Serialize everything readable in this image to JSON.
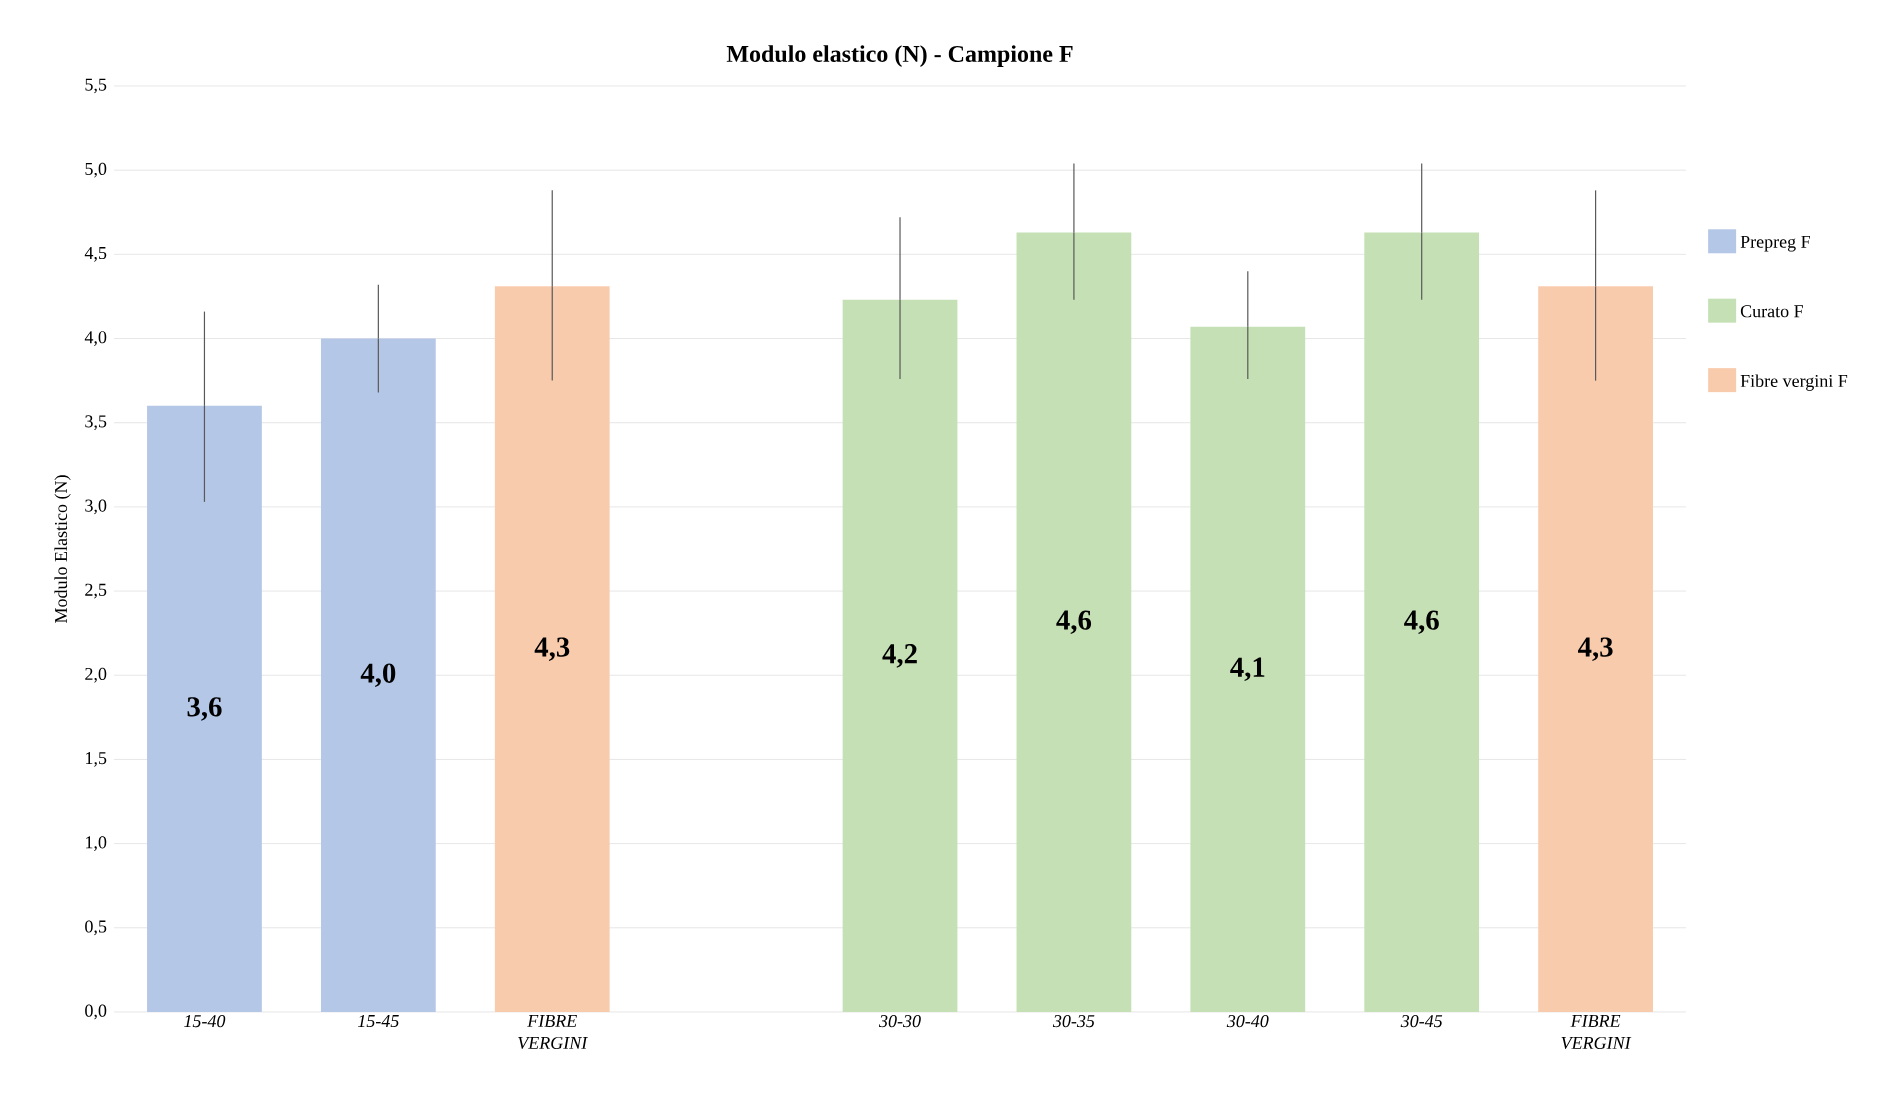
{
  "chart_data": {
    "type": "bar",
    "title": "Modulo elastico (N) - Campione F",
    "ylabel": "Modulo Elastico (N)",
    "categories": [
      "15-40",
      "15-45",
      "FIBRE VERGINI",
      null,
      "30-30",
      "30-35",
      "30-40",
      "30-45",
      "FIBRE VERGINI"
    ],
    "series": [
      {
        "name": "Prepreg F",
        "color": "#b4c7e7",
        "values": [
          3.6,
          4.0,
          null,
          null,
          null,
          null,
          null,
          null,
          null
        ],
        "errors": [
          [
            3.03,
            4.16
          ],
          [
            3.68,
            4.32
          ],
          null,
          null,
          null,
          null,
          null,
          null,
          null
        ],
        "value_labels": [
          "3,6",
          "4,0",
          null,
          null,
          null,
          null,
          null,
          null,
          null
        ]
      },
      {
        "name": "Curato F",
        "color": "#c5e0b4",
        "values": [
          null,
          null,
          null,
          null,
          4.23,
          4.63,
          4.07,
          4.63,
          null
        ],
        "errors": [
          null,
          null,
          null,
          null,
          [
            3.76,
            4.72
          ],
          [
            4.23,
            5.04
          ],
          [
            3.76,
            4.4
          ],
          [
            4.23,
            5.04
          ],
          null
        ],
        "value_labels": [
          null,
          null,
          null,
          null,
          "4,2",
          "4,6",
          "4,1",
          "4,6",
          null
        ]
      },
      {
        "name": "Fibre vergini F",
        "color": "#f8cbad",
        "values": [
          null,
          null,
          4.31,
          null,
          null,
          null,
          null,
          null,
          4.31
        ],
        "errors": [
          null,
          null,
          [
            3.75,
            4.88
          ],
          null,
          null,
          null,
          null,
          null,
          [
            3.75,
            4.88
          ]
        ],
        "value_labels": [
          null,
          null,
          "4,3",
          null,
          null,
          null,
          null,
          null,
          "4,3"
        ]
      }
    ],
    "ylim": [
      0,
      5.5
    ],
    "yticks": [
      {
        "value": 0,
        "label": "0,0"
      },
      {
        "value": 0.5,
        "label": "0,5"
      },
      {
        "value": 1,
        "label": "1,0"
      },
      {
        "value": 1.5,
        "label": "1,5"
      },
      {
        "value": 2,
        "label": "2,0"
      },
      {
        "value": 2.5,
        "label": "2,5"
      },
      {
        "value": 3,
        "label": "3,0"
      },
      {
        "value": 3.5,
        "label": "3,5"
      },
      {
        "value": 4,
        "label": "4,0"
      },
      {
        "value": 4.5,
        "label": "4,5"
      },
      {
        "value": 5,
        "label": "5,0"
      },
      {
        "value": 5.5,
        "label": "5,5"
      }
    ],
    "grid": "y",
    "legend": "right"
  }
}
